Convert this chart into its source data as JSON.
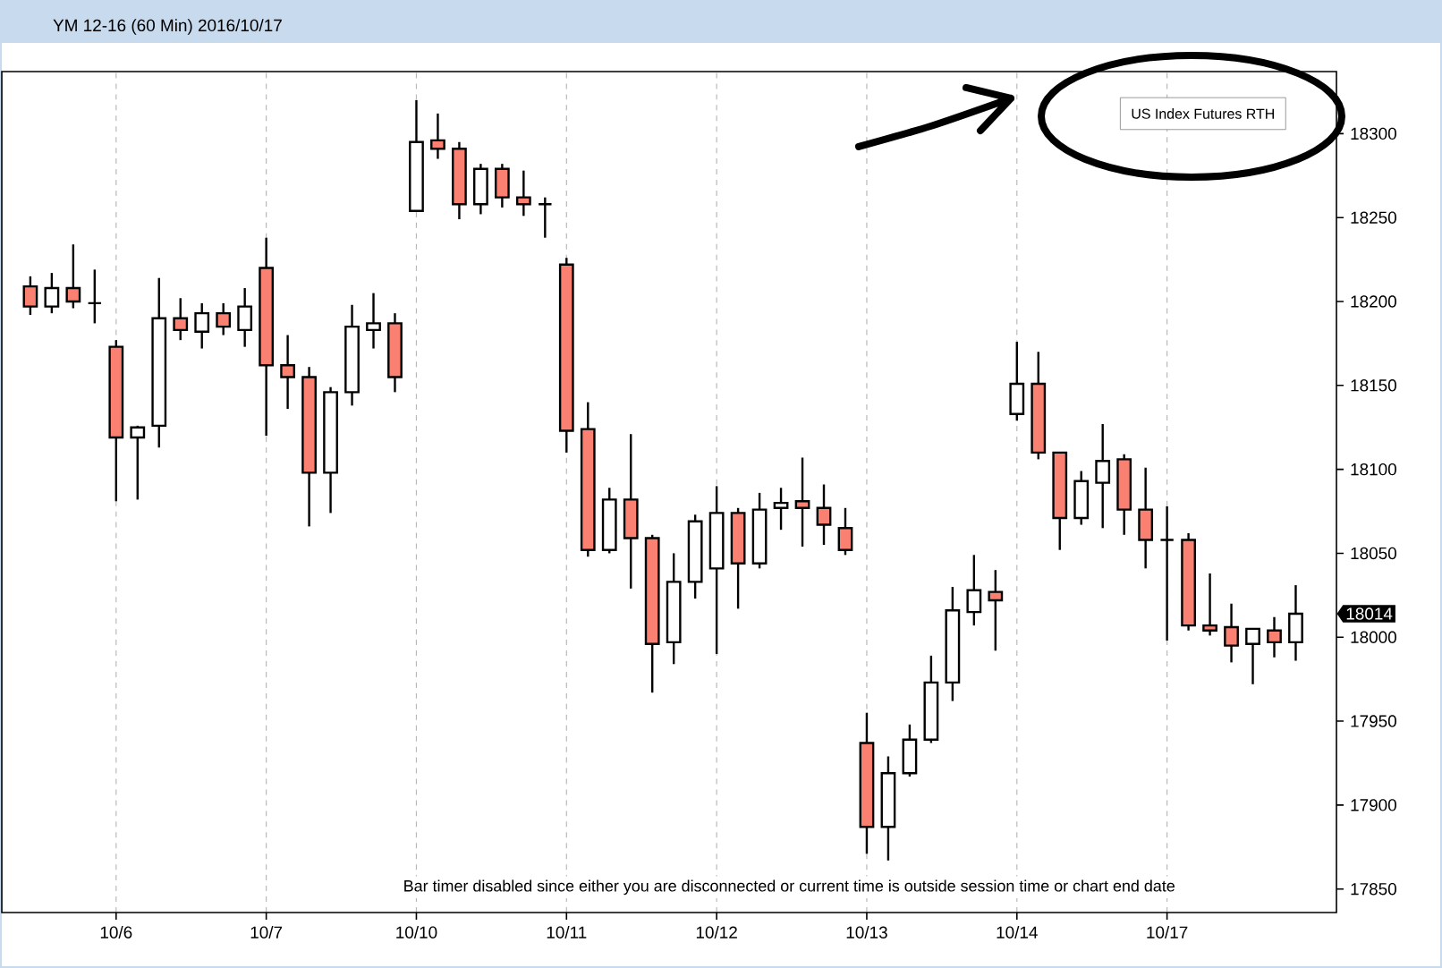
{
  "chart_data": {
    "type": "candlestick",
    "title": "YM 12-16 (60 Min)  2016/10/17",
    "categories": [
      null,
      null,
      null,
      null,
      "10/6",
      null,
      null,
      null,
      null,
      null,
      null,
      "10/7",
      null,
      null,
      null,
      null,
      null,
      null,
      "10/10",
      null,
      null,
      null,
      null,
      null,
      null,
      "10/11",
      null,
      null,
      null,
      null,
      null,
      null,
      "10/12",
      null,
      null,
      null,
      null,
      null,
      null,
      "10/13",
      null,
      null,
      null,
      null,
      null,
      null,
      "10/14",
      null,
      null,
      null,
      null,
      null,
      null,
      "10/17",
      null,
      null,
      null,
      null,
      null,
      null
    ],
    "ohlc": [
      [
        18209,
        18215,
        18192,
        18197
      ],
      [
        18197,
        18217,
        18193,
        18208
      ],
      [
        18208,
        18234,
        18196,
        18200
      ],
      [
        18199,
        18219,
        18187,
        18199
      ],
      [
        18173,
        18177,
        18081,
        18119
      ],
      [
        18119,
        18126,
        18082,
        18125
      ],
      [
        18126,
        18214,
        18113,
        18190
      ],
      [
        18190,
        18202,
        18177,
        18183
      ],
      [
        18182,
        18199,
        18172,
        18193
      ],
      [
        18193,
        18199,
        18180,
        18185
      ],
      [
        18183,
        18208,
        18173,
        18197
      ],
      [
        18220,
        18238,
        18120,
        18162
      ],
      [
        18162,
        18180,
        18136,
        18155
      ],
      [
        18155,
        18161,
        18066,
        18098
      ],
      [
        18098,
        18149,
        18074,
        18146
      ],
      [
        18146,
        18198,
        18138,
        18185
      ],
      [
        18183,
        18205,
        18172,
        18187
      ],
      [
        18187,
        18193,
        18146,
        18155
      ],
      [
        18254,
        18320,
        18254,
        18295
      ],
      [
        18296,
        18312,
        18285,
        18291
      ],
      [
        18291,
        18295,
        18249,
        18258
      ],
      [
        18258,
        18282,
        18252,
        18279
      ],
      [
        18279,
        18282,
        18256,
        18262
      ],
      [
        18262,
        18278,
        18251,
        18258
      ],
      [
        18258,
        18262,
        18238,
        18258
      ],
      [
        18222,
        18226,
        18110,
        18123
      ],
      [
        18124,
        18140,
        18048,
        18052
      ],
      [
        18052,
        18089,
        18050,
        18082
      ],
      [
        18082,
        18121,
        18029,
        18059
      ],
      [
        18059,
        18061,
        17967,
        17996
      ],
      [
        17997,
        18050,
        17984,
        18033
      ],
      [
        18033,
        18073,
        18023,
        18069
      ],
      [
        18041,
        18090,
        17990,
        18074
      ],
      [
        18074,
        18077,
        18017,
        18044
      ],
      [
        18044,
        18086,
        18041,
        18076
      ],
      [
        18077,
        18089,
        18064,
        18080
      ],
      [
        18081,
        18107,
        18054,
        18077
      ],
      [
        18077,
        18091,
        18055,
        18067
      ],
      [
        18065,
        18077,
        18049,
        18052
      ],
      [
        17937,
        17955,
        17871,
        17887
      ],
      [
        17887,
        17929,
        17867,
        17919
      ],
      [
        17919,
        17948,
        17917,
        17939
      ],
      [
        17939,
        17989,
        17937,
        17973
      ],
      [
        17973,
        18030,
        17962,
        18016
      ],
      [
        18015,
        18049,
        18007,
        18028
      ],
      [
        18027,
        18040,
        17992,
        18022
      ],
      [
        18133,
        18176,
        18129,
        18151
      ],
      [
        18151,
        18170,
        18106,
        18110
      ],
      [
        18110,
        18110,
        18052,
        18071
      ],
      [
        18071,
        18099,
        18067,
        18093
      ],
      [
        18092,
        18127,
        18065,
        18105
      ],
      [
        18106,
        18109,
        18061,
        18076
      ],
      [
        18076,
        18101,
        18041,
        18058
      ],
      [
        18058,
        18078,
        17998,
        18058
      ],
      [
        18058,
        18062,
        18004,
        18007
      ],
      [
        18007,
        18038,
        18001,
        18004
      ],
      [
        18006,
        18020,
        17985,
        17995
      ],
      [
        17996,
        18005,
        17972,
        18005
      ],
      [
        18004,
        18012,
        17988,
        17997
      ],
      [
        17997,
        18031,
        17986,
        18014
      ]
    ],
    "colors": [
      "#fa8072",
      "#ffffff",
      "#fa8072",
      "#000000",
      "#fa8072",
      "#ffffff",
      "#ffffff",
      "#fa8072",
      "#ffffff",
      "#fa8072",
      "#ffffff",
      "#fa8072",
      "#fa8072",
      "#fa8072",
      "#ffffff",
      "#ffffff",
      "#ffffff",
      "#fa8072",
      "#ffffff",
      "#fa8072",
      "#fa8072",
      "#ffffff",
      "#fa8072",
      "#fa8072",
      "#000000",
      "#fa8072",
      "#fa8072",
      "#ffffff",
      "#fa8072",
      "#fa8072",
      "#ffffff",
      "#ffffff",
      "#ffffff",
      "#fa8072",
      "#ffffff",
      "#ffffff",
      "#fa8072",
      "#fa8072",
      "#fa8072",
      "#fa8072",
      "#ffffff",
      "#ffffff",
      "#ffffff",
      "#ffffff",
      "#ffffff",
      "#fa8072",
      "#ffffff",
      "#fa8072",
      "#fa8072",
      "#ffffff",
      "#ffffff",
      "#fa8072",
      "#fa8072",
      "#000000",
      "#fa8072",
      "#fa8072",
      "#fa8072",
      "#ffffff",
      "#fa8072",
      "#ffffff"
    ],
    "ylim": [
      17836,
      18337
    ],
    "yticks": [
      17850,
      17900,
      17950,
      18000,
      18050,
      18100,
      18150,
      18200,
      18250,
      18300
    ],
    "grid": "x",
    "annotations": [
      "18014",
      "US Index Futures RTH",
      "Bar timer disabled since either you are disconnected or current time is outside session time or chart end date"
    ]
  }
}
